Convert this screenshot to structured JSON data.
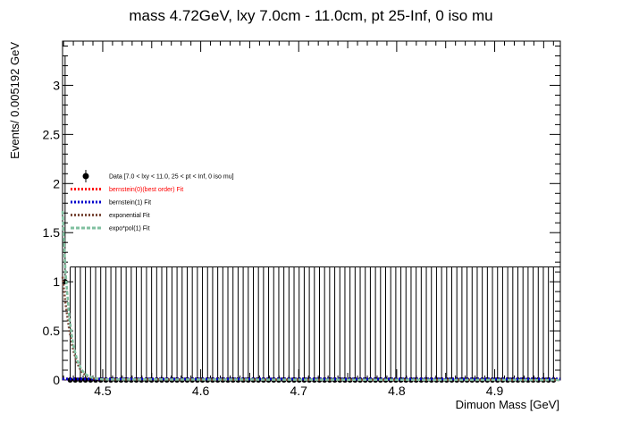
{
  "chart_data": {
    "type": "line",
    "title": "mass 4.72GeV, lxy 7.0cm - 11.0cm, pt 25-Inf, 0 iso mu",
    "xlabel": "Dimuon Mass [GeV]",
    "ylabel": "Events/ 0.005192 GeV",
    "xlim": [
      4.459,
      4.967
    ],
    "ylim": [
      0,
      3.45
    ],
    "xticks": [
      4.5,
      4.6,
      4.7,
      4.8,
      4.9
    ],
    "xtick_labels": [
      "4.5",
      "4.6",
      "4.7",
      "4.8",
      "4.9"
    ],
    "yticks": [
      0,
      0.5,
      1,
      1.5,
      2,
      2.5,
      3
    ],
    "ytick_labels": [
      "0",
      "0.5",
      "1",
      "1.5",
      "2",
      "2.5",
      "3"
    ],
    "grid": false,
    "legend_position": "left",
    "legend": [
      {
        "label": "Data [7.0 < lxy < 11.0, 25 < pt < Inf, 0 iso mu]",
        "color": "#000000",
        "style": "marker"
      },
      {
        "label": "bernstein(0)(best order) Fit",
        "color": "#ff0000",
        "style": "dotted"
      },
      {
        "label": "bernstein(1) Fit",
        "color": "#0000cc",
        "style": "dotted"
      },
      {
        "label": "exponential Fit",
        "color": "#7a4a3a",
        "style": "dotted"
      },
      {
        "label": "expo*pol(1) Fit",
        "color": "#80c0a0",
        "style": "dashed"
      }
    ],
    "data": {
      "bin_width": 0.005192,
      "x_start": 4.4616,
      "n_bins": 97,
      "nonzero_bins": [
        {
          "x": 4.4616,
          "y": 1
        }
      ],
      "error_upper": 1.15,
      "error_upper_first": 3.3
    },
    "series": [
      {
        "name": "bernstein(0)(best order) Fit",
        "color": "#ff0000",
        "x": [
          4.459,
          4.967
        ],
        "y": [
          0.01,
          0.01
        ]
      },
      {
        "name": "bernstein(1) Fit",
        "color": "#0000cc",
        "x": [
          4.459,
          4.967
        ],
        "y": [
          0.01,
          0.01
        ]
      },
      {
        "name": "exponential Fit",
        "color": "#7a4a3a",
        "x": [
          4.459,
          4.462,
          4.466,
          4.47,
          4.474,
          4.478,
          4.482,
          4.49,
          4.5,
          4.967
        ],
        "y": [
          1.05,
          0.78,
          0.5,
          0.3,
          0.17,
          0.09,
          0.05,
          0.015,
          0.005,
          0.0
        ]
      },
      {
        "name": "expo*pol(1) Fit",
        "color": "#80c0a0",
        "x": [
          4.459,
          4.462,
          4.466,
          4.47,
          4.474,
          4.478,
          4.482,
          4.49,
          4.5,
          4.967
        ],
        "y": [
          1.72,
          1.1,
          0.62,
          0.35,
          0.2,
          0.11,
          0.06,
          0.02,
          0.006,
          0.0
        ]
      }
    ]
  }
}
